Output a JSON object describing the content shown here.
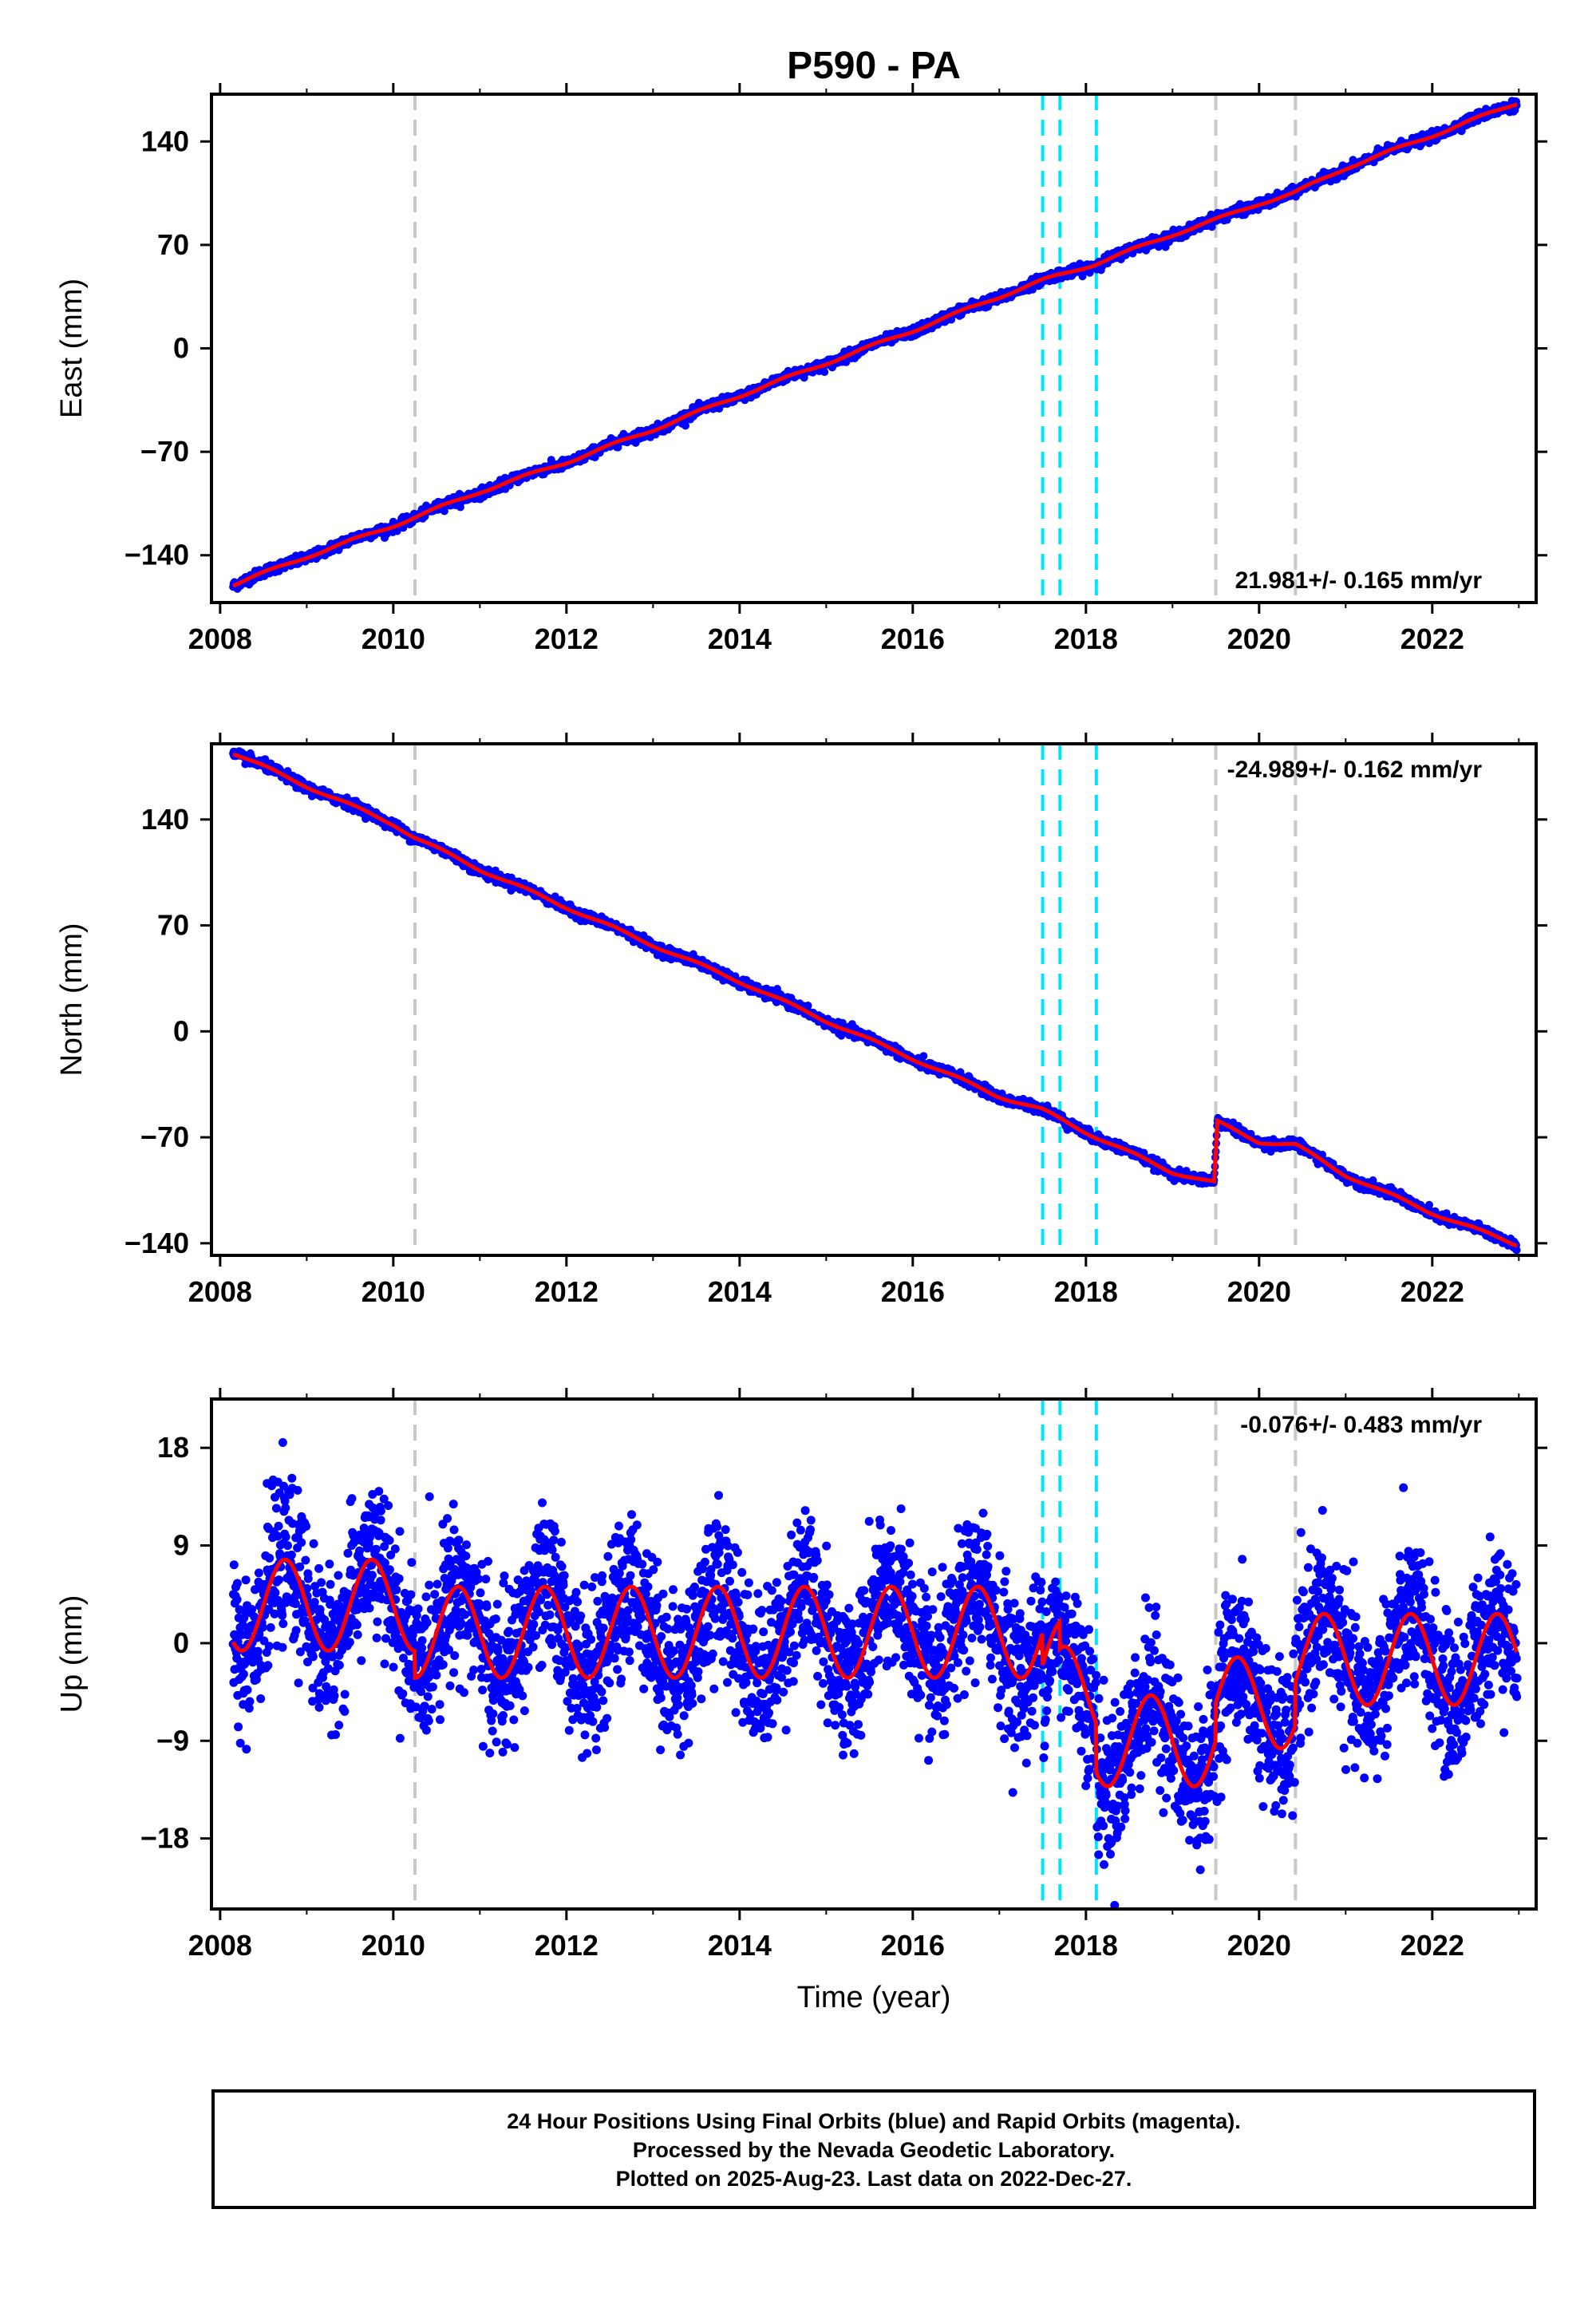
{
  "chart_data": {
    "title": "P590 - PA",
    "type": "scatter",
    "x_ticks": [
      2008,
      2010,
      2012,
      2014,
      2016,
      2018,
      2020,
      2022
    ],
    "xlabel": "Time (year)",
    "xlim": [
      2007.9,
      2023.2
    ],
    "event_lines": {
      "gray": [
        2010.25,
        2019.5,
        2020.42
      ],
      "cyan": [
        2017.5,
        2017.7,
        2018.12
      ]
    },
    "colors": {
      "points": "#0000ff",
      "model": "#ff0000",
      "cyan": "#00e5ff",
      "gray": "#c8c8c8"
    },
    "panels": [
      {
        "name": "East",
        "ylabel": "East (mm)",
        "ylim": [
          -172,
          172
        ],
        "yticks": [
          140,
          70,
          0,
          -70,
          -140
        ],
        "rate_label": "21.981+/- 0.165 mm/yr",
        "rate_position": "bottom-right",
        "series": [
          {
            "type": "scatter",
            "x": [
              2008.15,
              2009.0,
              2010.0,
              2011.0,
              2012.0,
              2013.0,
              2014.0,
              2015.0,
              2016.0,
              2017.0,
              2017.5,
              2018.1,
              2019.0,
              2019.5,
              2020.0,
              2020.4,
              2021.0,
              2022.0,
              2022.98
            ],
            "y": [
              -160,
              -141,
              -120,
              -97,
              -77,
              -55,
              -32,
              -10,
              12,
              35,
              46,
              57,
              77,
              87,
              98,
              105,
              122,
              144,
              166
            ]
          }
        ]
      },
      {
        "name": "North",
        "ylabel": "North (mm)",
        "ylim": [
          -148,
          190
        ],
        "yticks": [
          140,
          70,
          0,
          -70,
          -140
        ],
        "rate_label": "-24.989+/- 0.162 mm/yr",
        "rate_position": "top-right",
        "series": [
          {
            "type": "scatter",
            "x": [
              2008.15,
              2009.0,
              2010.0,
              2010.25,
              2011.0,
              2012.0,
              2013.0,
              2014.0,
              2015.0,
              2016.0,
              2017.0,
              2017.5,
              2018.12,
              2019.0,
              2019.48,
              2019.52,
              2020.0,
              2020.42,
              2021.0,
              2022.0,
              2022.98
            ],
            "y": [
              184,
              162,
              137,
              128,
              107,
              82,
              57,
              33,
              7,
              -18,
              -43,
              -52,
              -70,
              -93,
              -100,
              -60,
              -73,
              -75,
              -95,
              -120,
              -141
            ]
          }
        ]
      },
      {
        "name": "Up",
        "ylabel": "Up (mm)",
        "ylim": [
          -24.5,
          22.5
        ],
        "yticks": [
          18,
          9,
          0,
          -9,
          -18
        ],
        "rate_label": "-0.076+/- 0.483 mm/yr",
        "rate_position": "top-right",
        "model": {
          "seasonal_amplitude_mm": 4.2,
          "seasonal_peak": 0.75,
          "offset_segments": [
            {
              "from": 2008.15,
              "to": 2010.25,
              "level": 3.5
            },
            {
              "from": 2010.25,
              "to": 2017.5,
              "level": 1.0
            },
            {
              "from": 2017.5,
              "to": 2017.7,
              "level": -2.0
            },
            {
              "from": 2017.7,
              "to": 2018.12,
              "level": -4.5
            },
            {
              "from": 2018.12,
              "to": 2019.5,
              "level": -9.0
            },
            {
              "from": 2019.5,
              "to": 2020.42,
              "level": -5.5
            },
            {
              "from": 2020.42,
              "to": 2022.98,
              "level": -1.5
            }
          ]
        }
      }
    ]
  },
  "footer": {
    "line1": "24 Hour Positions Using Final Orbits (blue) and Rapid Orbits (magenta).",
    "line2": "Processed by the Nevada Geodetic Laboratory.",
    "line3": "Plotted on 2025-Aug-23. Last data on 2022-Dec-27."
  }
}
